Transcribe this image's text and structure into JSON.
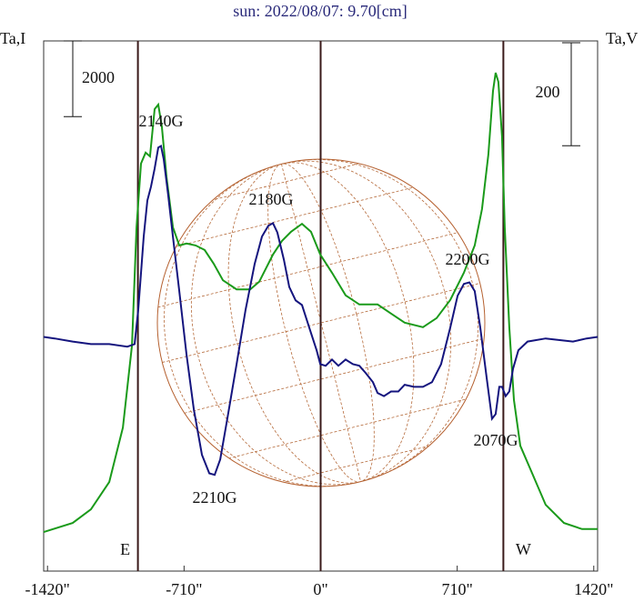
{
  "chart_data": {
    "type": "line",
    "title": "sun: 2022/08/07: 9.70[cm]",
    "y_label": "Ta,I",
    "y2_label": "Ta,V",
    "xlim": [
      -1440,
      1440
    ],
    "ylim": [
      -1000,
      13000
    ],
    "y2lim": [
      -450,
      580
    ],
    "xticks": [
      {
        "value": -1420,
        "label": "-1420\""
      },
      {
        "value": -710,
        "label": "-710\""
      },
      {
        "value": 0,
        "label": "0\""
      },
      {
        "value": 710,
        "label": "710\""
      },
      {
        "value": 1420,
        "label": "1420\""
      }
    ],
    "scale_bar": 2000,
    "y2_scale_bar": 200,
    "vlines": [
      {
        "value": -950,
        "label": "E"
      },
      {
        "value": 0
      },
      {
        "value": 950,
        "label": "W"
      }
    ],
    "annotations": [
      "2140G",
      "2180G",
      "2200G",
      "2070G",
      "2210G"
    ],
    "series": [
      {
        "name": "Ta,I",
        "color": "#1a9a1a",
        "axis": "y",
        "x": [
          -1440,
          -1289,
          -1194,
          -1099,
          -1028,
          -981,
          -957,
          -934,
          -910,
          -887,
          -863,
          -844,
          -825,
          -801,
          -768,
          -735,
          -697,
          -650,
          -603,
          -556,
          -508,
          -437,
          -366,
          -319,
          -248,
          -201,
          -154,
          -97,
          -50,
          -2,
          59,
          130,
          201,
          296,
          366,
          437,
          532,
          603,
          674,
          745,
          801,
          839,
          872,
          896,
          910,
          924,
          943,
          957,
          981,
          1005,
          1038,
          1099,
          1170,
          1265,
          1359,
          1440
        ],
        "values": [
          30,
          270,
          630,
          1350,
          2790,
          4960,
          8080,
          9760,
          10050,
          9950,
          11200,
          11320,
          10720,
          9400,
          8080,
          7600,
          7650,
          7600,
          7480,
          7120,
          6680,
          6440,
          6440,
          6640,
          7360,
          7720,
          7960,
          8170,
          7960,
          7360,
          6880,
          6280,
          6040,
          6040,
          5800,
          5560,
          5440,
          5680,
          6160,
          6880,
          7600,
          8560,
          10000,
          11680,
          12160,
          11920,
          10480,
          8080,
          5440,
          3520,
          2310,
          1590,
          750,
          270,
          110,
          110
        ]
      },
      {
        "name": "Ta,V",
        "color": "#14147e",
        "axis": "y2",
        "x": [
          -1440,
          -1383,
          -1289,
          -1194,
          -1099,
          -1005,
          -967,
          -948,
          -934,
          -920,
          -901,
          -882,
          -863,
          -844,
          -830,
          -816,
          -792,
          -768,
          -735,
          -697,
          -659,
          -617,
          -579,
          -551,
          -522,
          -485,
          -437,
          -390,
          -343,
          -305,
          -272,
          -248,
          -225,
          -191,
          -163,
          -130,
          -97,
          -59,
          -21,
          -2,
          26,
          59,
          92,
          130,
          168,
          201,
          234,
          272,
          296,
          329,
          366,
          404,
          437,
          485,
          532,
          579,
          626,
          674,
          712,
          745,
          773,
          801,
          830,
          863,
          891,
          910,
          929,
          943,
          962,
          981,
          1000,
          1028,
          1076,
          1170,
          1312,
          1383,
          1440
        ],
        "values": [
          5,
          2,
          -4,
          -9,
          -9,
          -14,
          -9,
          58,
          129,
          200,
          270,
          297,
          332,
          373,
          376,
          350,
          279,
          200,
          94,
          -30,
          -136,
          -224,
          -260,
          -263,
          -233,
          -154,
          -48,
          58,
          147,
          200,
          221,
          226,
          208,
          155,
          102,
          76,
          67,
          23,
          -21,
          -48,
          -51,
          -39,
          -51,
          -39,
          -48,
          -51,
          -65,
          -83,
          -104,
          -110,
          -101,
          -101,
          -88,
          -92,
          -92,
          -83,
          -48,
          23,
          85,
          108,
          111,
          94,
          23,
          -74,
          -154,
          -145,
          -92,
          -92,
          -110,
          -101,
          -57,
          -21,
          -4,
          2,
          -4,
          2,
          5
        ]
      }
    ]
  }
}
